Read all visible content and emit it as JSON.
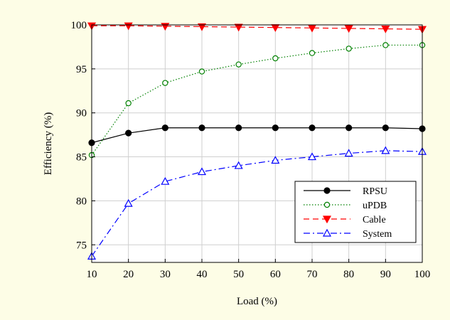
{
  "chart_data": {
    "type": "line",
    "title": "",
    "xlabel": "Load (%)",
    "ylabel": "Efficiency (%)",
    "x": [
      10,
      20,
      30,
      40,
      50,
      60,
      70,
      80,
      90,
      100
    ],
    "xlim": [
      10,
      100
    ],
    "ylim": [
      73,
      100
    ],
    "xticks": [
      10,
      20,
      30,
      40,
      50,
      60,
      70,
      80,
      90,
      100
    ],
    "yticks": [
      75,
      80,
      85,
      90,
      95,
      100
    ],
    "grid": true,
    "legend_position": "lower-right",
    "series": [
      {
        "name": "RPSU",
        "color": "#000000",
        "dash": "solid",
        "marker": "filled-circle",
        "values": [
          86.6,
          87.7,
          88.3,
          88.3,
          88.3,
          88.3,
          88.3,
          88.3,
          88.3,
          88.2
        ]
      },
      {
        "name": "uPDB",
        "color": "#008000",
        "dash": "dotted",
        "marker": "open-circle",
        "values": [
          85.2,
          91.1,
          93.4,
          94.7,
          95.5,
          96.2,
          96.8,
          97.3,
          97.7,
          97.7
        ]
      },
      {
        "name": "Cable",
        "color": "#ff0000",
        "dash": "dashed",
        "marker": "filled-down-triangle",
        "values": [
          99.9,
          99.9,
          99.85,
          99.8,
          99.75,
          99.7,
          99.65,
          99.6,
          99.55,
          99.5
        ]
      },
      {
        "name": "System",
        "color": "#0000ff",
        "dash": "dashdot",
        "marker": "open-up-triangle",
        "values": [
          73.7,
          79.7,
          82.2,
          83.3,
          84.0,
          84.6,
          85.0,
          85.4,
          85.7,
          85.6
        ]
      }
    ]
  }
}
